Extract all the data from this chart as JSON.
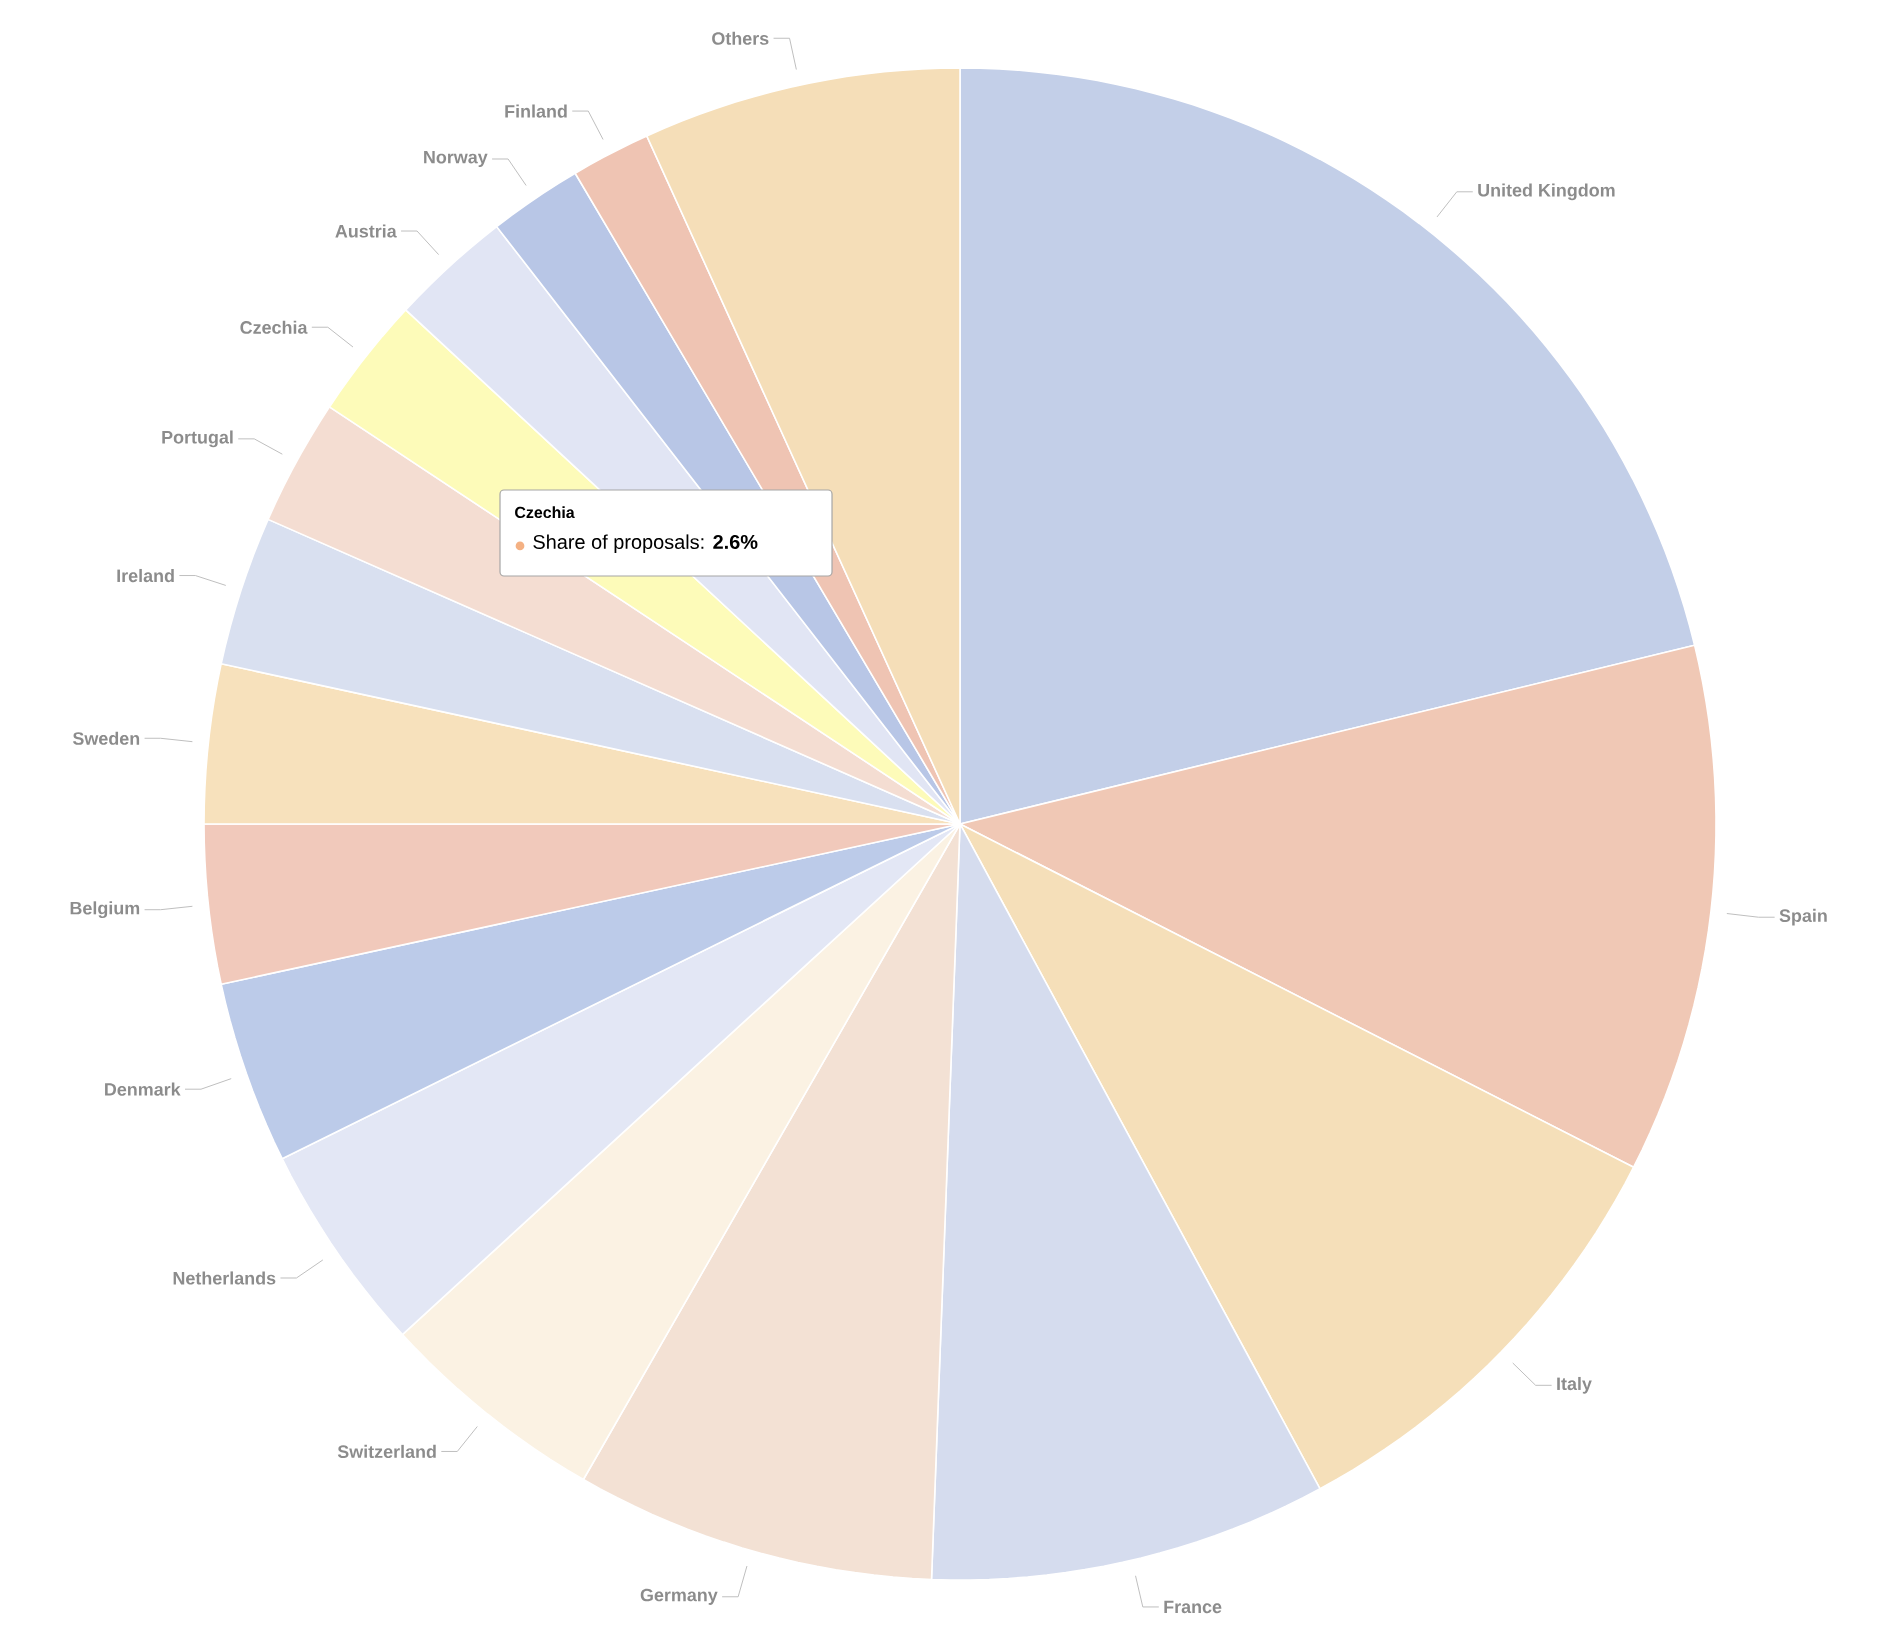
{
  "chart_data": {
    "type": "pie",
    "categories": [
      "United Kingdom",
      "Spain",
      "Italy",
      "France",
      "Germany",
      "Switzerland",
      "Netherlands",
      "Denmark",
      "Belgium",
      "Sweden",
      "Ireland",
      "Portugal",
      "Czechia",
      "Austria",
      "Norway",
      "Finland",
      "Others"
    ],
    "values": [
      21.2,
      11.3,
      9.6,
      8.5,
      7.7,
      4.9,
      4.5,
      3.9,
      3.4,
      3.4,
      3.2,
      2.7,
      2.6,
      2.6,
      2.0,
      1.7,
      6.8
    ],
    "colors": [
      "#c3cfe8",
      "#f0c8b5",
      "#f5dfb9",
      "#d5dcee",
      "#f3e1d4",
      "#fbf2e3",
      "#e3e7f5",
      "#bccbe9",
      "#f1c9bb",
      "#f7e1bc",
      "#d9e0f0",
      "#f4ddd2",
      "#fdfbb9",
      "#e1e5f4",
      "#b8c6e6",
      "#efc4b3",
      "#f5deb8"
    ],
    "annotations": [
      "Czechia",
      "Share of proposals: **2.6%**"
    ]
  }
}
